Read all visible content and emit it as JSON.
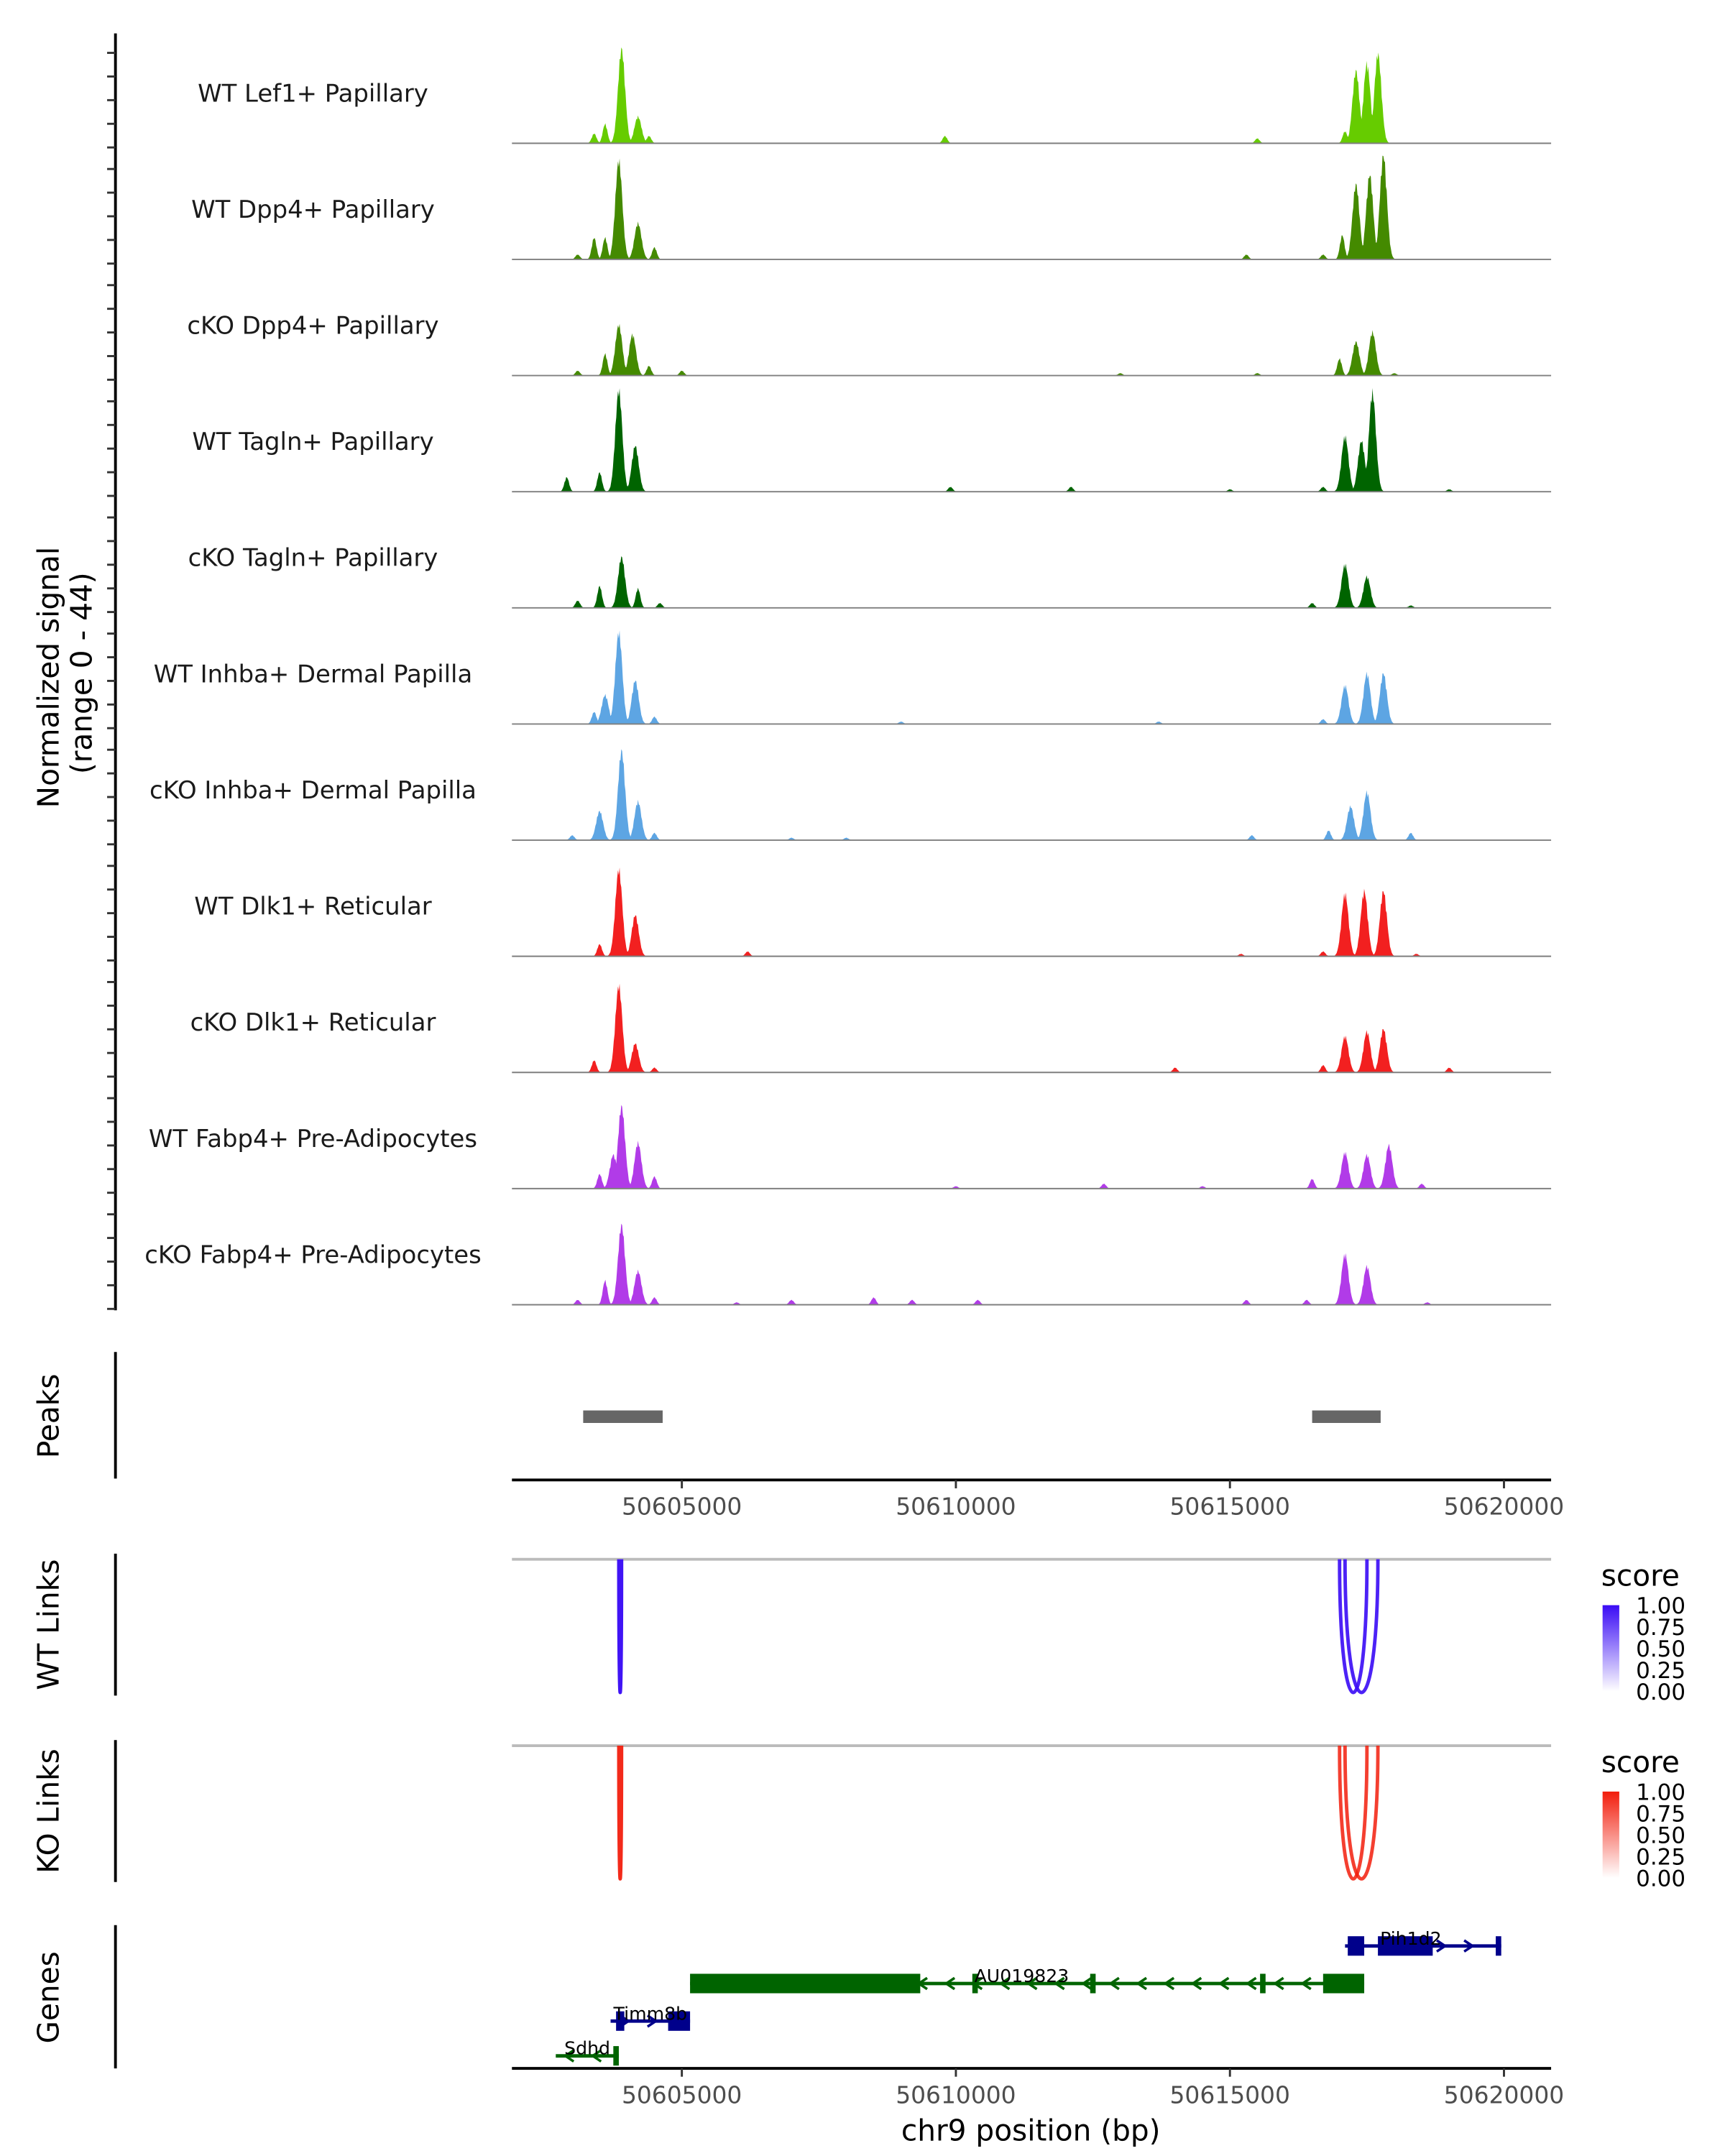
{
  "chart_data": {
    "type": "area",
    "title": "",
    "region": {
      "chromosome": "chr9",
      "start": 50601900,
      "end": 50620860
    },
    "xlabel": "chr9 position (bp)",
    "x_ticks": [
      50605000,
      50610000,
      50615000,
      50620000
    ],
    "x_tick_labels": [
      "50605000",
      "50610000",
      "50615000",
      "50620000"
    ],
    "coverage": {
      "ylabel_line1": "Normalized signal",
      "ylabel_line2": "(range 0 - 44)",
      "ylim": [
        0,
        44
      ],
      "tracks": [
        {
          "name": "WT Lef1+ Papillary",
          "color": "#66CC00",
          "peaks": [
            [
              50603400,
              4
            ],
            [
              50603600,
              8
            ],
            [
              50603900,
              39
            ],
            [
              50604200,
              11
            ],
            [
              50604400,
              3
            ],
            [
              50609800,
              3
            ],
            [
              50615500,
              2
            ],
            [
              50617100,
              5
            ],
            [
              50617300,
              30
            ],
            [
              50617500,
              33
            ],
            [
              50617700,
              37
            ]
          ]
        },
        {
          "name": "WT Dpp4+ Papillary",
          "color": "#448A00",
          "peaks": [
            [
              50603100,
              2
            ],
            [
              50603400,
              9
            ],
            [
              50603600,
              9
            ],
            [
              50603850,
              41
            ],
            [
              50604200,
              15
            ],
            [
              50604500,
              5
            ],
            [
              50615300,
              2
            ],
            [
              50616700,
              2
            ],
            [
              50617050,
              10
            ],
            [
              50617300,
              31
            ],
            [
              50617550,
              35
            ],
            [
              50617800,
              43
            ]
          ]
        },
        {
          "name": "cKO Dpp4+ Papillary",
          "color": "#448A00",
          "peaks": [
            [
              50603100,
              2
            ],
            [
              50603600,
              9
            ],
            [
              50603850,
              21
            ],
            [
              50604100,
              17
            ],
            [
              50604400,
              4
            ],
            [
              50605000,
              2
            ],
            [
              50613000,
              1
            ],
            [
              50615500,
              1
            ],
            [
              50617000,
              7
            ],
            [
              50617300,
              14
            ],
            [
              50617600,
              18
            ],
            [
              50618000,
              1
            ]
          ]
        },
        {
          "name": "WT Tagln+ Papillary",
          "color": "#006400",
          "peaks": [
            [
              50602900,
              6
            ],
            [
              50603500,
              8
            ],
            [
              50603850,
              42
            ],
            [
              50604150,
              19
            ],
            [
              50609900,
              2
            ],
            [
              50612100,
              2
            ],
            [
              50615000,
              1
            ],
            [
              50616700,
              2
            ],
            [
              50617100,
              23
            ],
            [
              50617400,
              21
            ],
            [
              50617600,
              41
            ],
            [
              50619000,
              1
            ]
          ]
        },
        {
          "name": "cKO Tagln+ Papillary",
          "color": "#006400",
          "peaks": [
            [
              50603100,
              3
            ],
            [
              50603500,
              9
            ],
            [
              50603900,
              21
            ],
            [
              50604200,
              8
            ],
            [
              50604600,
              2
            ],
            [
              50616500,
              2
            ],
            [
              50617100,
              18
            ],
            [
              50617500,
              13
            ],
            [
              50618300,
              1
            ]
          ]
        },
        {
          "name": "WT Inhba+ Dermal Papilla",
          "color": "#5DA5E3",
          "peaks": [
            [
              50603400,
              5
            ],
            [
              50603600,
              12
            ],
            [
              50603850,
              38
            ],
            [
              50604150,
              18
            ],
            [
              50604500,
              3
            ],
            [
              50609000,
              1
            ],
            [
              50613700,
              1
            ],
            [
              50616700,
              2
            ],
            [
              50617100,
              16
            ],
            [
              50617500,
              21
            ],
            [
              50617800,
              21
            ]
          ]
        },
        {
          "name": "cKO Inhba+ Dermal Papilla",
          "color": "#5DA5E3",
          "peaks": [
            [
              50603000,
              2
            ],
            [
              50603500,
              12
            ],
            [
              50603900,
              37
            ],
            [
              50604200,
              16
            ],
            [
              50604500,
              3
            ],
            [
              50607000,
              1
            ],
            [
              50608000,
              1
            ],
            [
              50615400,
              2
            ],
            [
              50616800,
              4
            ],
            [
              50617200,
              14
            ],
            [
              50617500,
              20
            ],
            [
              50618300,
              3
            ]
          ]
        },
        {
          "name": "WT Dlk1+ Reticular",
          "color": "#F22020",
          "peaks": [
            [
              50603500,
              5
            ],
            [
              50603850,
              36
            ],
            [
              50604150,
              17
            ],
            [
              50606200,
              2
            ],
            [
              50615200,
              1
            ],
            [
              50616700,
              2
            ],
            [
              50617100,
              26
            ],
            [
              50617450,
              27
            ],
            [
              50617800,
              27
            ],
            [
              50618400,
              1
            ]
          ]
        },
        {
          "name": "cKO Dlk1+ Reticular",
          "color": "#F22020",
          "peaks": [
            [
              50603400,
              5
            ],
            [
              50603850,
              36
            ],
            [
              50604150,
              12
            ],
            [
              50604500,
              2
            ],
            [
              50614000,
              2
            ],
            [
              50616700,
              3
            ],
            [
              50617100,
              15
            ],
            [
              50617500,
              17
            ],
            [
              50617800,
              18
            ],
            [
              50619000,
              2
            ]
          ]
        },
        {
          "name": "WT Fabp4+ Pre-Adipocytes",
          "color": "#B13BE8",
          "peaks": [
            [
              50603500,
              6
            ],
            [
              50603750,
              14
            ],
            [
              50603900,
              34
            ],
            [
              50604200,
              19
            ],
            [
              50604500,
              5
            ],
            [
              50610000,
              1
            ],
            [
              50612700,
              2
            ],
            [
              50614500,
              1
            ],
            [
              50616500,
              4
            ],
            [
              50617100,
              15
            ],
            [
              50617500,
              14
            ],
            [
              50617900,
              18
            ],
            [
              50618500,
              2
            ]
          ]
        },
        {
          "name": "cKO Fabp4+ Pre-Adipocytes",
          "color": "#B13BE8",
          "peaks": [
            [
              50603100,
              2
            ],
            [
              50603600,
              10
            ],
            [
              50603900,
              33
            ],
            [
              50604200,
              14
            ],
            [
              50604500,
              3
            ],
            [
              50606000,
              1
            ],
            [
              50607000,
              2
            ],
            [
              50608500,
              3
            ],
            [
              50609200,
              2
            ],
            [
              50610400,
              2
            ],
            [
              50615300,
              2
            ],
            [
              50616400,
              2
            ],
            [
              50617100,
              21
            ],
            [
              50617500,
              16
            ],
            [
              50618600,
              1
            ]
          ]
        }
      ]
    },
    "peaks_track": {
      "label": "Peaks",
      "color": "#666666",
      "regions": [
        [
          50603200,
          50604650
        ],
        [
          50616500,
          50617750
        ]
      ]
    },
    "links": [
      {
        "label": "WT Links",
        "legend_title": "score",
        "color_high": "#3A0CF5",
        "color_low": "#FFFFFF",
        "legend_ticks": [
          "1.00",
          "0.75",
          "0.50",
          "0.25",
          "0.00"
        ],
        "arcs": [
          {
            "start": 50603850,
            "end": 50603900,
            "score": 0.95
          },
          {
            "start": 50617000,
            "end": 50617500,
            "score": 0.85
          },
          {
            "start": 50617100,
            "end": 50617700,
            "score": 0.85
          }
        ]
      },
      {
        "label": "KO Links",
        "legend_title": "score",
        "color_high": "#F21D0C",
        "color_low": "#FFFFFF",
        "legend_ticks": [
          "1.00",
          "0.75",
          "0.50",
          "0.25",
          "0.00"
        ],
        "arcs": [
          {
            "start": 50603850,
            "end": 50603900,
            "score": 0.9
          },
          {
            "start": 50617000,
            "end": 50617500,
            "score": 0.75
          },
          {
            "start": 50617100,
            "end": 50617700,
            "score": 0.75
          }
        ]
      }
    ],
    "genes": {
      "label": "Genes",
      "items": [
        {
          "name": "Pih1d2",
          "strand": "+",
          "color": "#00008B",
          "start": 50617100,
          "end": 50619950,
          "row": 0,
          "exons": [
            [
              50617150,
              50617450
            ],
            [
              50617700,
              50618700
            ],
            [
              50619850,
              50619950
            ]
          ]
        },
        {
          "name": "AU019823",
          "strand": "-",
          "color": "#006400",
          "start": 50605150,
          "end": 50617450,
          "row": 1,
          "exons": [
            [
              50605150,
              50609350
            ],
            [
              50610300,
              50610400
            ],
            [
              50612450,
              50612550
            ],
            [
              50615550,
              50615650
            ],
            [
              50616700,
              50617450
            ]
          ]
        },
        {
          "name": "Timm8b",
          "strand": "+",
          "color": "#00008B",
          "start": 50603700,
          "end": 50605150,
          "row": 2,
          "exons": [
            [
              50603800,
              50603950
            ],
            [
              50604750,
              50605150
            ]
          ]
        },
        {
          "name": "Sdhd",
          "strand": "-",
          "color": "#006400",
          "start": 50602700,
          "end": 50603850,
          "row": 3,
          "exons": [
            [
              50603750,
              50603850
            ]
          ]
        }
      ]
    }
  }
}
